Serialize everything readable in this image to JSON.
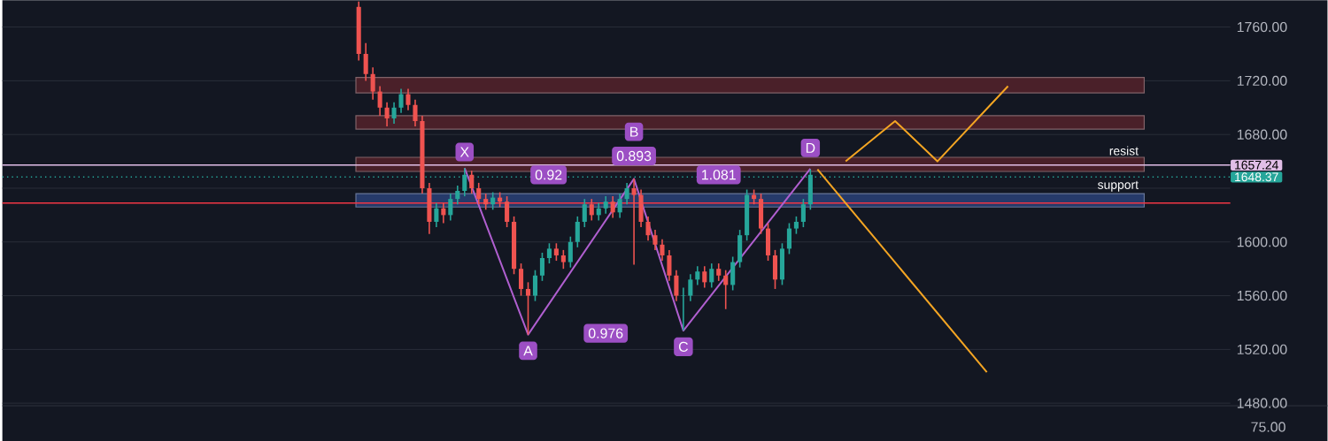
{
  "chart_data": {
    "type": "candlestick",
    "categories": [
      null,
      null,
      null,
      null,
      null,
      null,
      null,
      null,
      null,
      null,
      null,
      null,
      null,
      null,
      null,
      null,
      null,
      null,
      null,
      null,
      null,
      null,
      null,
      null,
      null,
      null,
      null,
      null,
      null,
      null,
      null,
      null,
      null,
      null,
      null,
      null,
      null,
      null,
      null,
      null,
      null,
      null,
      null,
      null,
      null,
      null,
      null,
      null,
      null,
      null,
      null,
      null,
      null,
      null,
      null,
      null,
      null,
      null,
      null,
      null,
      null,
      null,
      null,
      null,
      null,
      null,
      null,
      null,
      null,
      null,
      null,
      null,
      null,
      null,
      null,
      null,
      null,
      null,
      null,
      null,
      null,
      null,
      null,
      null,
      null,
      null,
      null,
      null,
      null,
      null,
      null,
      null,
      null,
      null,
      null,
      null,
      null,
      null,
      null,
      null,
      null,
      null,
      null,
      null,
      null,
      null,
      null,
      null,
      null,
      null,
      null,
      null,
      null,
      null,
      null,
      null,
      null,
      null,
      null,
      null,
      null,
      null,
      null,
      null,
      null,
      null,
      null,
      null,
      null,
      null,
      null,
      null,
      null,
      null,
      null,
      null,
      null,
      null,
      null,
      null,
      null,
      null,
      null,
      null,
      null,
      null,
      null,
      null,
      null,
      null,
      null,
      null,
      null,
      null,
      null,
      null,
      null,
      null,
      null,
      null,
      null,
      null,
      null,
      null,
      null,
      null,
      null,
      null,
      null,
      null,
      null,
      null,
      null,
      null
    ],
    "ohlc": [
      null,
      null,
      null,
      null,
      null,
      null,
      null,
      null,
      null,
      null,
      null,
      null,
      null,
      null,
      null,
      null,
      null,
      null,
      null,
      null,
      null,
      null,
      null,
      null,
      null,
      null,
      null,
      null,
      null,
      null,
      null,
      null,
      null,
      null,
      null,
      null,
      null,
      null,
      null,
      null,
      null,
      null,
      null,
      null,
      null,
      null,
      null,
      null,
      null,
      null,
      [
        1775,
        1779,
        1735,
        1740
      ],
      [
        1740,
        1748,
        1720,
        1725
      ],
      [
        1725,
        1730,
        1706,
        1712
      ],
      [
        1712,
        1716,
        1694,
        1700
      ],
      [
        1700,
        1704,
        1686,
        1692
      ],
      [
        1692,
        1704,
        1688,
        1700
      ],
      [
        1700,
        1714,
        1696,
        1710
      ],
      [
        1710,
        1714,
        1698,
        1702
      ],
      [
        1702,
        1706,
        1686,
        1690
      ],
      [
        1690,
        1694,
        1636,
        1640
      ],
      [
        1640,
        1644,
        1606,
        1615
      ],
      [
        1615,
        1629,
        1611,
        1625
      ],
      [
        1625,
        1629,
        1614,
        1620
      ],
      [
        1620,
        1636,
        1616,
        1632
      ],
      [
        1632,
        1642,
        1628,
        1638
      ],
      [
        1638,
        1655,
        1634,
        1650
      ],
      [
        1650,
        1653,
        1636,
        1640
      ],
      [
        1640,
        1644,
        1628,
        1632
      ],
      [
        1632,
        1636,
        1624,
        1628
      ],
      [
        1628,
        1637,
        1624,
        1633
      ],
      [
        1633,
        1637,
        1626,
        1630
      ],
      [
        1630,
        1634,
        1611,
        1615
      ],
      [
        1615,
        1619,
        1576,
        1580
      ],
      [
        1580,
        1584,
        1560,
        1565
      ],
      [
        1565,
        1570,
        1531,
        1560
      ],
      [
        1560,
        1579,
        1556,
        1575
      ],
      [
        1575,
        1592,
        1571,
        1588
      ],
      [
        1588,
        1599,
        1584,
        1595
      ],
      [
        1595,
        1599,
        1586,
        1590
      ],
      [
        1590,
        1594,
        1580,
        1585
      ],
      [
        1585,
        1604,
        1581,
        1600
      ],
      [
        1600,
        1619,
        1596,
        1615
      ],
      [
        1615,
        1632,
        1611,
        1628
      ],
      [
        1628,
        1632,
        1616,
        1620
      ],
      [
        1620,
        1629,
        1616,
        1625
      ],
      [
        1625,
        1634,
        1621,
        1630
      ],
      [
        1630,
        1634,
        1618,
        1622
      ],
      [
        1622,
        1636,
        1618,
        1632
      ],
      [
        1632,
        1644,
        1628,
        1640
      ],
      [
        1640,
        1647,
        1583,
        1635
      ],
      [
        1635,
        1639,
        1611,
        1615
      ],
      [
        1615,
        1619,
        1601,
        1605
      ],
      [
        1605,
        1609,
        1594,
        1598
      ],
      [
        1598,
        1602,
        1586,
        1590
      ],
      [
        1590,
        1594,
        1571,
        1575
      ],
      [
        1575,
        1579,
        1556,
        1560
      ],
      [
        1560,
        1566,
        1534,
        1560
      ],
      [
        1560,
        1576,
        1556,
        1572
      ],
      [
        1572,
        1582,
        1568,
        1578
      ],
      [
        1578,
        1582,
        1566,
        1570
      ],
      [
        1570,
        1584,
        1566,
        1580
      ],
      [
        1580,
        1584,
        1571,
        1575
      ],
      [
        1575,
        1579,
        1550,
        1568
      ],
      [
        1568,
        1589,
        1564,
        1585
      ],
      [
        1585,
        1609,
        1581,
        1605
      ],
      [
        1605,
        1639,
        1601,
        1635
      ],
      [
        1635,
        1639,
        1628,
        1632
      ],
      [
        1632,
        1636,
        1606,
        1610
      ],
      [
        1610,
        1614,
        1586,
        1590
      ],
      [
        1590,
        1594,
        1565,
        1572
      ],
      [
        1572,
        1599,
        1568,
        1595
      ],
      [
        1595,
        1614,
        1591,
        1610
      ],
      [
        1610,
        1619,
        1606,
        1615
      ],
      [
        1615,
        1632,
        1611,
        1628
      ],
      [
        1628,
        1654,
        1624,
        1650
      ],
      null,
      null,
      null,
      null,
      null,
      null,
      null,
      null,
      null,
      null,
      null,
      null,
      null,
      null,
      null,
      null,
      null,
      null,
      null,
      null,
      null,
      null,
      null,
      null,
      null,
      null,
      null,
      null,
      null,
      null,
      null,
      null,
      null,
      null,
      null,
      null,
      null,
      null,
      null,
      null,
      null,
      null,
      null,
      null,
      null,
      null,
      null,
      null,
      null,
      null,
      null,
      null,
      null,
      null,
      null,
      null,
      null,
      null,
      null
    ],
    "series": [
      {
        "type": "line",
        "color": "#b05fd0",
        "values": [
          null,
          null,
          null,
          null,
          null,
          null,
          null,
          null,
          null,
          null,
          null,
          null,
          null,
          null,
          null,
          null,
          null,
          null,
          null,
          null,
          null,
          null,
          null,
          null,
          null,
          null,
          null,
          null,
          null,
          null,
          null,
          null,
          null,
          null,
          null,
          null,
          null,
          null,
          null,
          null,
          null,
          null,
          null,
          null,
          null,
          null,
          null,
          null,
          null,
          null,
          null,
          null,
          null,
          null,
          null,
          null,
          null,
          null,
          null,
          null,
          null,
          null,
          null,
          null,
          null,
          1655,
          null,
          null,
          null,
          null,
          null,
          null,
          null,
          null,
          1531,
          null,
          null,
          null,
          null,
          null,
          null,
          null,
          null,
          null,
          null,
          null,
          null,
          null,
          null,
          1647,
          null,
          null,
          null,
          null,
          null,
          null,
          1534,
          null,
          null,
          null,
          null,
          null,
          null,
          null,
          null,
          null,
          null,
          null,
          null,
          null,
          null,
          null,
          null,
          null,
          1654.5,
          null,
          null,
          null,
          null,
          null,
          null,
          null,
          null,
          null,
          null,
          null,
          null,
          null,
          null,
          null,
          null,
          null,
          null,
          null,
          null,
          null,
          null,
          null,
          null,
          null,
          null,
          null,
          null,
          null,
          null,
          null,
          null,
          null,
          null,
          null,
          null,
          null,
          null,
          null,
          null,
          null,
          null,
          null,
          null,
          null,
          null,
          null,
          null,
          null,
          null,
          null,
          null,
          null,
          null,
          null,
          null,
          null,
          null,
          null
        ]
      },
      {
        "type": "line",
        "color": "#f5a623",
        "values": [
          null,
          null,
          null,
          null,
          null,
          null,
          null,
          null,
          null,
          null,
          null,
          null,
          null,
          null,
          null,
          null,
          null,
          null,
          null,
          null,
          null,
          null,
          null,
          null,
          null,
          null,
          null,
          null,
          null,
          null,
          null,
          null,
          null,
          null,
          null,
          null,
          null,
          null,
          null,
          null,
          null,
          null,
          null,
          null,
          null,
          null,
          null,
          null,
          null,
          null,
          null,
          null,
          null,
          null,
          null,
          null,
          null,
          null,
          null,
          null,
          null,
          null,
          null,
          null,
          null,
          null,
          null,
          null,
          null,
          null,
          null,
          null,
          null,
          null,
          null,
          null,
          null,
          null,
          null,
          null,
          null,
          null,
          null,
          null,
          null,
          null,
          null,
          null,
          null,
          null,
          null,
          null,
          null,
          null,
          null,
          null,
          null,
          null,
          null,
          null,
          null,
          null,
          null,
          null,
          null,
          null,
          null,
          null,
          null,
          null,
          null,
          null,
          null,
          null,
          null,
          null,
          null,
          null,
          null,
          1660,
          null,
          null,
          null,
          null,
          null,
          null,
          1690,
          null,
          null,
          null,
          null,
          null,
          1660,
          null,
          null,
          null,
          null,
          null,
          null,
          null,
          null,
          null,
          1716,
          null,
          null,
          null,
          null,
          null,
          null,
          null,
          null,
          null,
          null,
          null,
          null,
          null,
          null,
          null,
          null,
          null,
          null,
          null,
          null,
          null,
          null,
          null,
          null,
          null,
          null,
          null,
          null,
          null,
          null,
          null
        ]
      },
      {
        "type": "line",
        "color": "#f5a623",
        "values": [
          null,
          null,
          null,
          null,
          null,
          null,
          null,
          null,
          null,
          null,
          null,
          null,
          null,
          null,
          null,
          null,
          null,
          null,
          null,
          null,
          null,
          null,
          null,
          null,
          null,
          null,
          null,
          null,
          null,
          null,
          null,
          null,
          null,
          null,
          null,
          null,
          null,
          null,
          null,
          null,
          null,
          null,
          null,
          null,
          null,
          null,
          null,
          null,
          null,
          null,
          null,
          null,
          null,
          null,
          null,
          null,
          null,
          null,
          null,
          null,
          null,
          null,
          null,
          null,
          null,
          null,
          null,
          null,
          null,
          null,
          null,
          null,
          null,
          null,
          null,
          null,
          null,
          null,
          null,
          null,
          null,
          null,
          null,
          null,
          null,
          null,
          null,
          null,
          null,
          null,
          null,
          null,
          null,
          null,
          null,
          null,
          null,
          null,
          null,
          null,
          null,
          null,
          null,
          null,
          null,
          null,
          null,
          null,
          null,
          null,
          null,
          null,
          null,
          null,
          null,
          1654,
          null,
          null,
          null,
          null,
          null,
          null,
          null,
          null,
          null,
          null,
          null,
          null,
          null,
          null,
          null,
          null,
          null,
          null,
          null,
          null,
          null,
          null,
          null,
          1503,
          null,
          null,
          null,
          null,
          null,
          null,
          null,
          null,
          null,
          null,
          null,
          null,
          null,
          null,
          null,
          null,
          null,
          null,
          null,
          null,
          null,
          null,
          null,
          null,
          null,
          null,
          null,
          null,
          null,
          null,
          null,
          null,
          null,
          null
        ]
      }
    ],
    "ylim": [
      1478,
      1780
    ],
    "yticks": [
      {
        "value": 1480,
        "label": "1480.00"
      },
      {
        "value": 1520,
        "label": "1520.00"
      },
      {
        "value": 1560,
        "label": "1560.00"
      },
      {
        "value": 1600,
        "label": "1600.00"
      },
      {
        "value": 1640,
        "label": null
      },
      {
        "value": 1680,
        "label": "1680.00"
      },
      {
        "value": 1720,
        "label": "1720.00"
      },
      {
        "value": 1760,
        "label": "1760.00"
      }
    ],
    "tick_labels": "y",
    "grid": "y",
    "line_style": "solid",
    "ref_lines": [
      {
        "axis": "y",
        "value": 1657.24,
        "label": "1657.24",
        "color": "#e1bee7",
        "line_style": "solid"
      },
      {
        "axis": "y",
        "value": 1648.37,
        "label": "1648.37",
        "color": "#26a69a",
        "line_style": "dotted"
      },
      {
        "axis": "y",
        "value": 1629,
        "label": null,
        "color": "#f23645",
        "line_style": "solid"
      }
    ],
    "bands": [
      {
        "axis": "y",
        "from": 1711,
        "to": 1722.5,
        "label": null,
        "color": "#4a2029"
      },
      {
        "axis": "y",
        "from": 1684,
        "to": 1694,
        "label": null,
        "color": "#4a2029"
      },
      {
        "axis": "y",
        "from": 1652.5,
        "to": 1663,
        "label": "resist",
        "color": "#4a2029"
      },
      {
        "axis": "y",
        "from": 1626,
        "to": 1636,
        "label": "support",
        "color": "#263a6a"
      }
    ],
    "annotations": [
      {
        "text": "X",
        "y": 1667
      },
      {
        "text": "A",
        "y": 1519
      },
      "B",
      {
        "text": "C",
        "y": 1522
      },
      {
        "text": "D",
        "y": 1670
      },
      "0.92",
      "0.893",
      "1.081",
      "0.976",
      "75.00"
    ]
  }
}
